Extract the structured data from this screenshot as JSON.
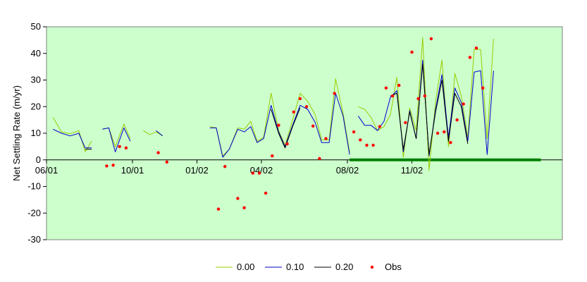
{
  "chart_data": {
    "type": "line",
    "title": "",
    "xlabel": "",
    "ylabel": "Net Settling Rate (m/yr)",
    "ylim": [
      -30,
      50
    ],
    "y_ticks": [
      -30,
      -20,
      -10,
      0,
      10,
      20,
      30,
      40,
      50
    ],
    "x_tick_labels": [
      "06/01",
      "10/01",
      "01/02",
      "04/02",
      "08/02",
      "11/02"
    ],
    "x_tick_months": [
      0,
      4,
      7,
      10,
      14,
      17
    ],
    "xlim_months": [
      0,
      24
    ],
    "plot_background": "#ccffcc",
    "grid": false,
    "legend_position": "bottom",
    "zero_line_color": "#000000",
    "highlight_bar": {
      "x_start_month": 14.1,
      "x_end_month": 23.0,
      "y": 0,
      "color": "#008000"
    },
    "series": [
      {
        "name": "0.00",
        "color": "#99cc00",
        "kind": "line",
        "segments": [
          [
            [
              0.3,
              16
            ],
            [
              0.7,
              10.5
            ],
            [
              1.1,
              9.8
            ],
            [
              1.5,
              11
            ],
            [
              1.8,
              3
            ],
            [
              2.1,
              7
            ]
          ],
          [
            [
              2.6,
              11.5
            ],
            [
              2.9,
              12
            ],
            [
              3.2,
              5
            ],
            [
              3.6,
              13.5
            ],
            [
              3.9,
              8
            ]
          ],
          [
            [
              4.5,
              11
            ],
            [
              4.8,
              9.5
            ],
            [
              5.1,
              10.5
            ],
            [
              5.4,
              9
            ]
          ],
          [
            [
              7.6,
              12.5
            ],
            [
              7.9,
              12
            ],
            [
              8.2,
              1.5
            ],
            [
              8.5,
              4
            ],
            [
              8.9,
              12
            ],
            [
              9.2,
              11.5
            ],
            [
              9.5,
              14.5
            ],
            [
              9.8,
              7
            ],
            [
              10.1,
              8.5
            ],
            [
              10.45,
              25
            ],
            [
              10.8,
              11
            ],
            [
              11.1,
              5.5
            ],
            [
              11.45,
              15
            ],
            [
              11.8,
              25
            ],
            [
              12.15,
              22
            ],
            [
              12.5,
              17
            ],
            [
              12.8,
              7.5
            ],
            [
              13.15,
              7.5
            ],
            [
              13.45,
              30.5
            ],
            [
              13.8,
              17.5
            ],
            [
              14.1,
              3
            ]
          ]
        ]
      },
      {
        "name": "0.10",
        "color": "#0000cc",
        "kind": "line",
        "segments": [
          [
            [
              0.3,
              11.5
            ],
            [
              0.7,
              10
            ],
            [
              1.1,
              9
            ],
            [
              1.5,
              10
            ],
            [
              1.8,
              4.5
            ],
            [
              2.1,
              4.5
            ]
          ],
          [
            [
              2.6,
              11.5
            ],
            [
              2.9,
              12
            ],
            [
              3.2,
              3
            ],
            [
              3.6,
              12
            ],
            [
              3.9,
              7
            ]
          ],
          [
            [
              5.1,
              11
            ],
            [
              5.4,
              9
            ]
          ],
          [
            [
              7.6,
              12
            ],
            [
              7.9,
              12
            ],
            [
              8.2,
              1
            ],
            [
              8.5,
              4
            ],
            [
              8.9,
              11.5
            ],
            [
              9.2,
              10.5
            ],
            [
              9.5,
              12.5
            ],
            [
              9.8,
              6.5
            ],
            [
              10.1,
              8
            ],
            [
              10.45,
              20.5
            ],
            [
              10.8,
              10.5
            ],
            [
              11.1,
              5
            ],
            [
              11.45,
              13
            ],
            [
              11.8,
              20.5
            ],
            [
              12.15,
              19
            ],
            [
              12.5,
              14
            ],
            [
              12.8,
              6.5
            ],
            [
              13.15,
              6.5
            ],
            [
              13.45,
              25
            ],
            [
              13.8,
              16.5
            ],
            [
              14.1,
              2
            ]
          ]
        ]
      },
      {
        "name": "0.20",
        "color": "#000000",
        "kind": "line",
        "segments": [
          [
            [
              1.8,
              4
            ],
            [
              2.1,
              4
            ]
          ],
          [
            [
              10.45,
              19
            ],
            [
              10.8,
              10
            ],
            [
              11.1,
              4.5
            ],
            [
              11.45,
              12.5
            ],
            [
              11.8,
              19.5
            ]
          ]
        ]
      },
      {
        "name": "Obs",
        "color": "#ff0000",
        "kind": "scatter",
        "points": [
          [
            2.8,
            -2.3
          ],
          [
            3.1,
            -2
          ],
          [
            3.4,
            5
          ],
          [
            3.7,
            4.5
          ],
          [
            5.2,
            2.7
          ],
          [
            5.6,
            -0.8
          ],
          [
            8.0,
            -18.5
          ],
          [
            8.3,
            -2.5
          ],
          [
            8.9,
            -14.5
          ],
          [
            9.2,
            -18
          ],
          [
            9.6,
            -5
          ],
          [
            9.9,
            -5
          ],
          [
            10.2,
            -12.5
          ],
          [
            10.5,
            1.5
          ],
          [
            10.8,
            13
          ],
          [
            11.2,
            6
          ],
          [
            11.5,
            18
          ],
          [
            11.8,
            23
          ],
          [
            12.1,
            20
          ],
          [
            12.4,
            12.7
          ],
          [
            12.7,
            0.5
          ],
          [
            13.0,
            8
          ],
          [
            13.4,
            25
          ],
          [
            14.3,
            10.5
          ],
          [
            14.6,
            7.5
          ],
          [
            14.9,
            5.5
          ],
          [
            15.2,
            5.5
          ],
          [
            15.5,
            12.5
          ],
          [
            15.8,
            27
          ],
          [
            16.1,
            24
          ],
          [
            16.4,
            28
          ],
          [
            16.7,
            14
          ],
          [
            17.0,
            40.5
          ],
          [
            17.3,
            23
          ],
          [
            17.6,
            24
          ],
          [
            17.9,
            45.5
          ],
          [
            18.2,
            10
          ],
          [
            18.5,
            10.5
          ],
          [
            18.8,
            6.5
          ],
          [
            19.1,
            15
          ],
          [
            19.4,
            21
          ],
          [
            19.7,
            38.5
          ],
          [
            20.0,
            42
          ],
          [
            20.3,
            27
          ]
        ]
      }
    ],
    "late_segments": {
      "0.00": [
        [
          14.5,
          20
        ],
        [
          14.8,
          19
        ],
        [
          15.1,
          16
        ],
        [
          15.4,
          11
        ],
        [
          15.7,
          12.5
        ],
        [
          16.0,
          17
        ],
        [
          16.3,
          31
        ],
        [
          16.6,
          1
        ],
        [
          16.9,
          19.5
        ],
        [
          17.2,
          11
        ],
        [
          17.5,
          46
        ],
        [
          17.8,
          -4
        ],
        [
          18.1,
          22
        ],
        [
          18.4,
          37.5
        ],
        [
          18.7,
          5
        ],
        [
          19.0,
          32.5
        ],
        [
          19.3,
          24
        ],
        [
          19.6,
          8.5
        ],
        [
          19.9,
          41.5
        ],
        [
          20.2,
          41.5
        ],
        [
          20.5,
          8
        ],
        [
          20.8,
          45.5
        ]
      ],
      "0.10": [
        [
          14.5,
          16.5
        ],
        [
          14.8,
          13
        ],
        [
          15.1,
          13
        ],
        [
          15.4,
          11
        ],
        [
          15.7,
          14.5
        ],
        [
          16.0,
          23.5
        ],
        [
          16.3,
          26
        ],
        [
          16.6,
          3
        ],
        [
          16.9,
          18.5
        ],
        [
          17.2,
          8
        ],
        [
          17.5,
          37.5
        ],
        [
          17.8,
          1.5
        ],
        [
          18.1,
          19
        ],
        [
          18.4,
          32
        ],
        [
          18.7,
          8.5
        ],
        [
          19.0,
          27
        ],
        [
          19.3,
          21.5
        ],
        [
          19.6,
          7
        ],
        [
          19.9,
          33
        ],
        [
          20.2,
          33.5
        ],
        [
          20.5,
          2
        ],
        [
          20.8,
          33.5
        ]
      ],
      "0.20": [
        [
          16.0,
          24
        ],
        [
          16.3,
          25
        ],
        [
          16.6,
          4
        ],
        [
          16.9,
          18
        ],
        [
          17.2,
          8
        ],
        [
          17.5,
          36
        ],
        [
          17.8,
          2
        ],
        [
          18.1,
          18
        ],
        [
          18.4,
          30
        ],
        [
          18.7,
          7
        ],
        [
          19.0,
          25
        ],
        [
          19.3,
          20
        ],
        [
          19.6,
          6
        ]
      ]
    }
  },
  "legend": {
    "items": [
      {
        "label": "0.00",
        "color": "#99cc00",
        "kind": "line"
      },
      {
        "label": "0.10",
        "color": "#0000cc",
        "kind": "line"
      },
      {
        "label": "0.20",
        "color": "#000000",
        "kind": "line"
      },
      {
        "label": "Obs",
        "color": "#ff0000",
        "kind": "marker"
      }
    ]
  }
}
